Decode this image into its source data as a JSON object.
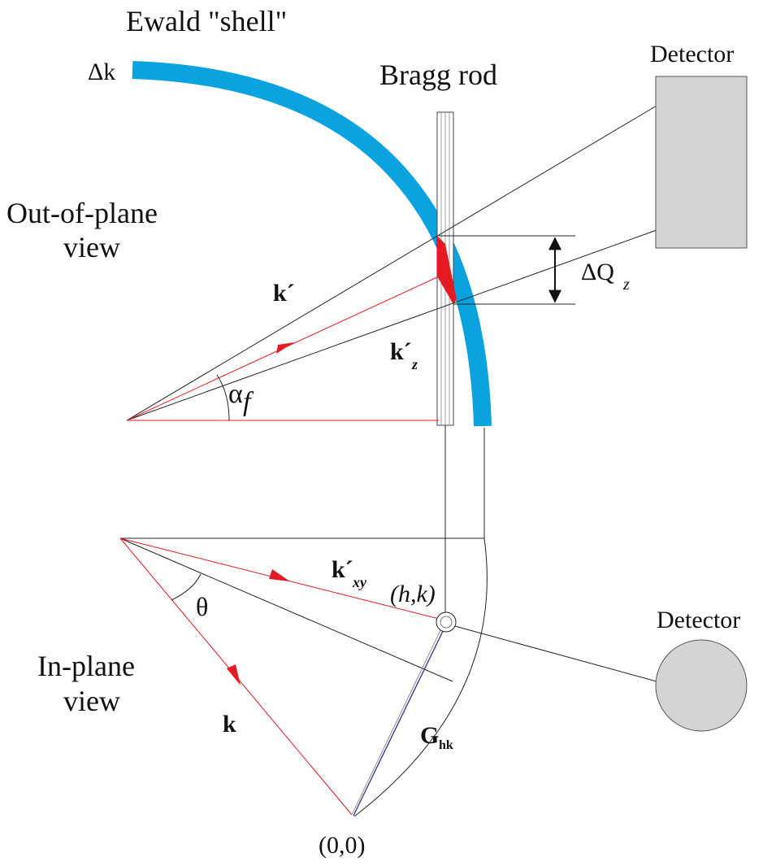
{
  "labels": {
    "ewald_shell": "Ewald \"shell\"",
    "delta_k": "Δk",
    "bragg_rod": "Bragg rod",
    "detector_top": "Detector",
    "detector_bottom": "Detector",
    "out_of_plane_1": "Out-of-plane",
    "out_of_plane_2": "view",
    "in_plane_1": "In-plane",
    "in_plane_2": "view",
    "delta_q": "ΔQ",
    "delta_q_sub": "z",
    "k_prime": "k´",
    "k_prime_z": "k´",
    "k_prime_z_sub": "z",
    "alpha": "α",
    "alpha_sub": "f",
    "k_prime_xy": "k´",
    "k_prime_xy_sub": "xy",
    "hk_point": "(h,k)",
    "theta": "θ",
    "k": "k",
    "g": "G",
    "g_sub": "hk",
    "origin": "(0,0)"
  },
  "colors": {
    "ewald_shell": "#0aa3e0",
    "intersection": "#e31b23",
    "wavevector": "#e31b23",
    "detector_fill": "#d4d4d4",
    "g_vector": "#3a3a9a"
  }
}
